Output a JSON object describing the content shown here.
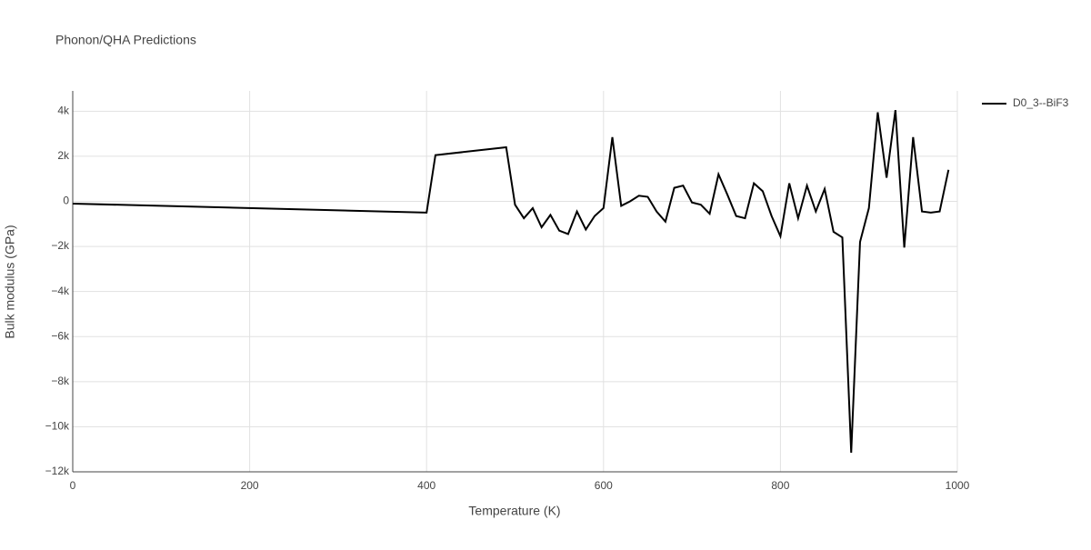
{
  "chart_data": {
    "type": "line",
    "title": "Phonon/QHA Predictions",
    "x_label": "Temperature (K)",
    "y_label": "Bulk modulus (GPa)",
    "x": [
      0,
      400,
      410,
      490,
      500,
      510,
      520,
      530,
      540,
      550,
      560,
      570,
      580,
      590,
      600,
      610,
      620,
      630,
      640,
      650,
      660,
      670,
      680,
      690,
      700,
      710,
      720,
      730,
      740,
      750,
      760,
      770,
      780,
      790,
      800,
      810,
      820,
      830,
      840,
      850,
      860,
      870,
      880,
      890,
      900,
      910,
      920,
      930,
      940,
      950,
      960,
      970,
      980,
      990
    ],
    "series": [
      {
        "name": "D0_3--BiF3",
        "color": "#000000",
        "values": [
          -100,
          -500,
          2050,
          2400,
          -150,
          -750,
          -300,
          -1150,
          -600,
          -1300,
          -1450,
          -450,
          -1250,
          -650,
          -300,
          2850,
          -200,
          0,
          250,
          200,
          -450,
          -900,
          600,
          700,
          -50,
          -150,
          -550,
          1200,
          300,
          -650,
          -750,
          800,
          450,
          -650,
          -1550,
          800,
          -750,
          700,
          -450,
          550,
          -1350,
          -1600,
          -11150,
          -1800,
          -300,
          3950,
          1050,
          4050,
          -2050,
          2850,
          -450,
          -500,
          -450,
          1400
        ]
      }
    ],
    "xlim": [
      0,
      1000
    ],
    "xticks": [
      0,
      200,
      400,
      600,
      800,
      1000
    ],
    "ylim": [
      -12000,
      4900
    ],
    "yticks": [
      {
        "value": -12000,
        "label": "−12k"
      },
      {
        "value": -10000,
        "label": "−10k"
      },
      {
        "value": -8000,
        "label": "−8k"
      },
      {
        "value": -6000,
        "label": "−6k"
      },
      {
        "value": -4000,
        "label": "−4k"
      },
      {
        "value": -2000,
        "label": "−2k"
      },
      0,
      {
        "value": 2000,
        "label": "2k"
      },
      {
        "value": 4000,
        "label": "4k"
      }
    ],
    "grid": true,
    "legend": "right"
  }
}
